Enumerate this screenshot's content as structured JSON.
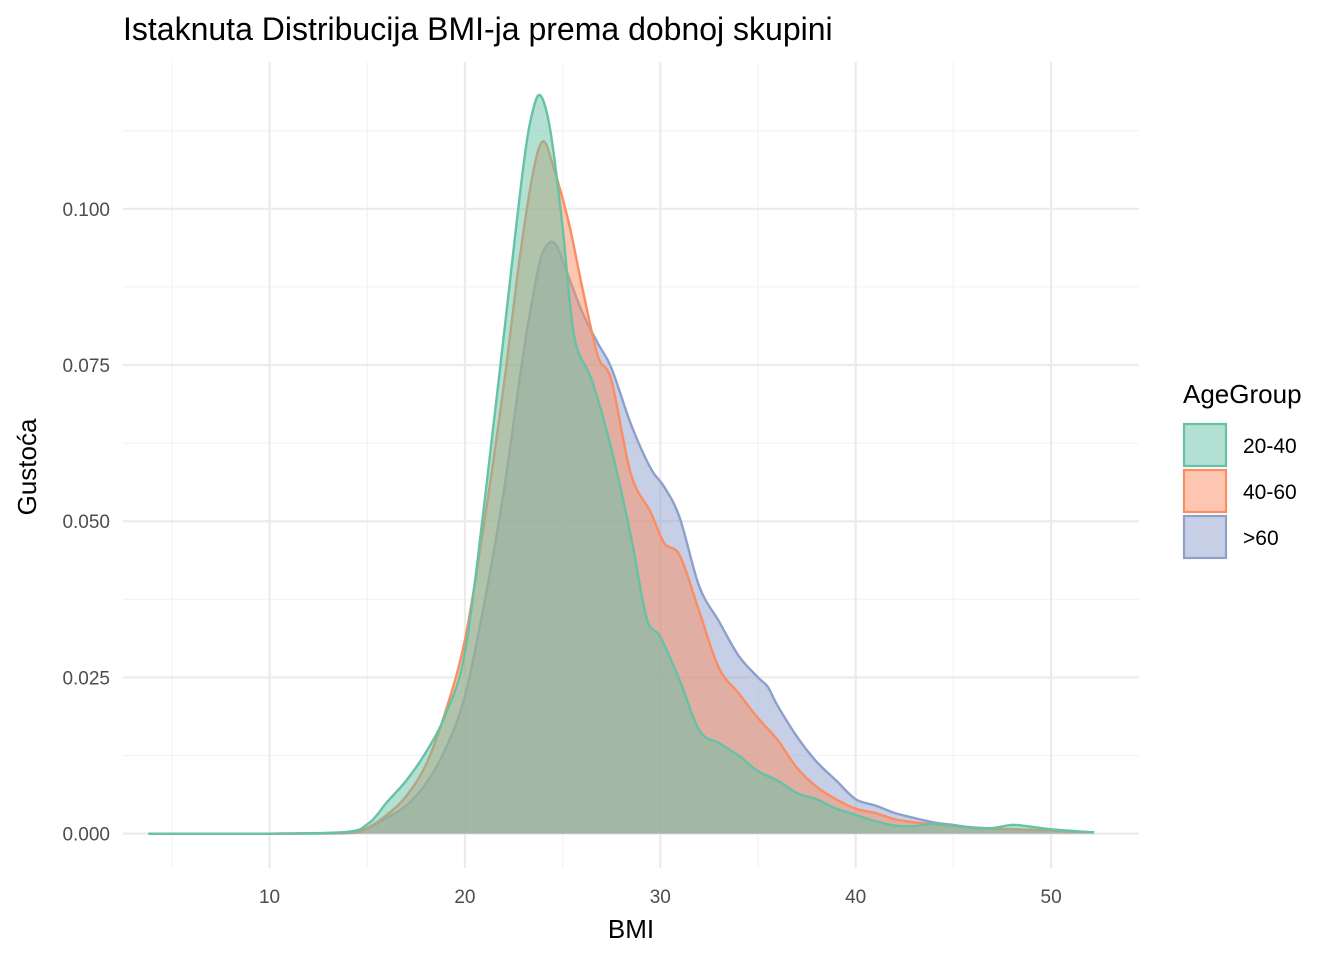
{
  "chart_data": {
    "type": "area",
    "subtype": "density",
    "title": "Istaknuta Distribucija BMI-ja prema dobnoj skupini",
    "xlabel": "BMI",
    "ylabel": "Gustoća",
    "xlim": [
      2.5,
      54.5
    ],
    "ylim": [
      -0.0055,
      0.1235
    ],
    "xticks": [
      10,
      20,
      30,
      40,
      50
    ],
    "xtick_labels": [
      "10",
      "20",
      "30",
      "40",
      "50"
    ],
    "yticks": [
      0,
      0.025,
      0.05,
      0.075,
      0.1
    ],
    "ytick_labels": [
      "0.000",
      "0.025",
      "0.050",
      "0.075",
      "0.100"
    ],
    "grid": true,
    "legend": {
      "title": "AgeGroup",
      "position": "right"
    },
    "series": [
      {
        "name": ">60",
        "color": "#8da0cb",
        "x": [
          3.8,
          10,
          14,
          15,
          16,
          17,
          18,
          19,
          20,
          21,
          22,
          23,
          23.8,
          24.3,
          24.7,
          25.2,
          26,
          26.8,
          27.5,
          28.5,
          29.5,
          30.2,
          31,
          32,
          33,
          34,
          35,
          35.5,
          36,
          37,
          38,
          39,
          40,
          41,
          42,
          43,
          44,
          45,
          46,
          48,
          50,
          52.2
        ],
        "values": [
          0,
          0,
          0.0001,
          0.0008,
          0.0025,
          0.0045,
          0.008,
          0.0135,
          0.022,
          0.037,
          0.055,
          0.077,
          0.091,
          0.0945,
          0.094,
          0.09,
          0.0835,
          0.0785,
          0.0745,
          0.0655,
          0.0585,
          0.0555,
          0.0505,
          0.0395,
          0.034,
          0.0285,
          0.025,
          0.0235,
          0.0205,
          0.0155,
          0.0115,
          0.0085,
          0.0055,
          0.0045,
          0.0033,
          0.0025,
          0.0018,
          0.0014,
          0.001,
          0.0007,
          0.0005,
          0.0002
        ]
      },
      {
        "name": "40-60",
        "color": "#fc8d62",
        "x": [
          3.8,
          10,
          14,
          15,
          16,
          17,
          18,
          19,
          20,
          21,
          22,
          22.8,
          23.5,
          24,
          24.5,
          25.3,
          26,
          26.8,
          27.5,
          28.5,
          29.5,
          30.2,
          31,
          32,
          33,
          34,
          35,
          36,
          37,
          38,
          39,
          40,
          41,
          42,
          43,
          44,
          45,
          46,
          48,
          50,
          52.2
        ],
        "values": [
          0,
          0,
          0.0002,
          0.0009,
          0.003,
          0.006,
          0.011,
          0.0195,
          0.031,
          0.05,
          0.072,
          0.092,
          0.106,
          0.1108,
          0.107,
          0.098,
          0.0875,
          0.0765,
          0.0725,
          0.0575,
          0.0515,
          0.0465,
          0.0445,
          0.0355,
          0.0265,
          0.0225,
          0.0185,
          0.015,
          0.0105,
          0.0075,
          0.0055,
          0.004,
          0.0033,
          0.0023,
          0.0018,
          0.0015,
          0.0012,
          0.0009,
          0.0007,
          0.0005,
          0.0002
        ]
      },
      {
        "name": "20-40",
        "color": "#66c2a5",
        "x": [
          3.8,
          10,
          14,
          15,
          15.5,
          16,
          17,
          18,
          19,
          20,
          21,
          22,
          23,
          23.5,
          23.9,
          24.4,
          25,
          25.6,
          26.5,
          27.5,
          28.5,
          29.3,
          30,
          31,
          32,
          33,
          34,
          35,
          36,
          37,
          38,
          39,
          40,
          41,
          42,
          43,
          44,
          45,
          46,
          47,
          48,
          49,
          50,
          52.2
        ],
        "values": [
          0,
          0,
          0.0003,
          0.0015,
          0.003,
          0.005,
          0.0085,
          0.013,
          0.019,
          0.029,
          0.053,
          0.08,
          0.107,
          0.116,
          0.118,
          0.112,
          0.097,
          0.0795,
          0.0725,
          0.0615,
          0.0475,
          0.0345,
          0.0315,
          0.0245,
          0.0165,
          0.0145,
          0.0125,
          0.01,
          0.0085,
          0.0065,
          0.0055,
          0.004,
          0.003,
          0.002,
          0.0013,
          0.0012,
          0.0016,
          0.0013,
          0.0009,
          0.0009,
          0.0014,
          0.0011,
          0.0007,
          0.0002
        ]
      }
    ],
    "legend_order": [
      "20-40",
      "40-60",
      ">60"
    ]
  }
}
